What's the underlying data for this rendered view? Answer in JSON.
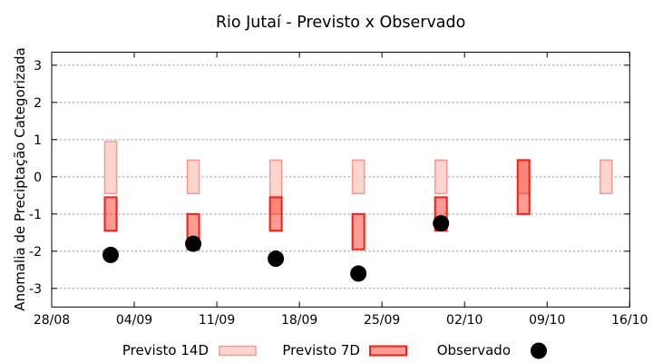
{
  "chart_data": {
    "type": "bar",
    "subtype": "range-bars-with-scatter",
    "title": "Rio Jutaí - Previsto x Observado",
    "xlabel": "",
    "ylabel": "Anomalia de Preciptação Categorizada",
    "x_tick_labels": [
      "28/08",
      "04/09",
      "11/09",
      "18/09",
      "25/09",
      "02/10",
      "09/10",
      "16/10"
    ],
    "y_ticks": [
      -3,
      -2,
      -1,
      0,
      1,
      2,
      3
    ],
    "ylim": [
      -3.5,
      3.35
    ],
    "x_span_days": 49,
    "grid": "horizontal-dashed-only",
    "legend_position": "below-plot",
    "legend": [
      {
        "label": "Previsto 14D",
        "swatch": "light-pink-bar"
      },
      {
        "label": "Previsto 7D",
        "swatch": "red-bar"
      },
      {
        "label": "Observado",
        "swatch": "black-dot"
      }
    ],
    "series": [
      {
        "name": "Previsto 14D",
        "type": "range-bar",
        "points": [
          {
            "date": "02/09",
            "day": 5,
            "low": -0.45,
            "high": 0.95
          },
          {
            "date": "09/09",
            "day": 12,
            "low": -0.45,
            "high": 0.45
          },
          {
            "date": "16/09",
            "day": 19,
            "low": -1.0,
            "high": 0.45
          },
          {
            "date": "23/09",
            "day": 26,
            "low": -0.45,
            "high": 0.45
          },
          {
            "date": "30/09",
            "day": 33,
            "low": -0.45,
            "high": 0.45
          },
          {
            "date": "07/10",
            "day": 40,
            "low": -0.45,
            "high": 0.45
          },
          {
            "date": "14/10",
            "day": 47,
            "low": -0.45,
            "high": 0.45
          }
        ]
      },
      {
        "name": "Previsto 7D",
        "type": "range-bar",
        "points": [
          {
            "date": "02/09",
            "day": 5,
            "low": -1.45,
            "high": -0.55
          },
          {
            "date": "09/09",
            "day": 12,
            "low": -1.95,
            "high": -1.0
          },
          {
            "date": "16/09",
            "day": 19,
            "low": -1.45,
            "high": -0.55
          },
          {
            "date": "23/09",
            "day": 26,
            "low": -1.95,
            "high": -1.0
          },
          {
            "date": "30/09",
            "day": 33,
            "low": -1.45,
            "high": -0.55
          },
          {
            "date": "07/10",
            "day": 40,
            "low": -1.0,
            "high": 0.45
          }
        ]
      },
      {
        "name": "Observado",
        "type": "scatter",
        "points": [
          {
            "date": "02/09",
            "day": 5,
            "value": -2.1
          },
          {
            "date": "09/09",
            "day": 12,
            "value": -1.8
          },
          {
            "date": "16/09",
            "day": 19,
            "value": -2.2
          },
          {
            "date": "23/09",
            "day": 26,
            "value": -2.6
          },
          {
            "date": "30/09",
            "day": 33,
            "value": -1.25
          }
        ]
      }
    ],
    "colors": {
      "bar14_fill": "#fcd5ce",
      "bar14_border": "#f49a91",
      "bar7_fill": "rgba(248,35,17,0.45)",
      "bar7_border": "#f41e14",
      "bar7_legend_fill": "#fc9c94",
      "observed": "#000000",
      "grid": "#8c8c8c",
      "axis": "#000000",
      "background": "#ffffff"
    }
  }
}
